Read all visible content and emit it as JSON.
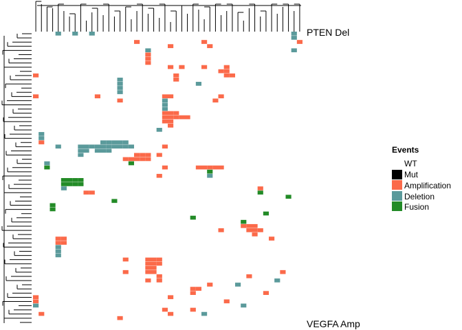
{
  "chart_data": {
    "type": "heatmap",
    "title": "",
    "xlabel": "",
    "ylabel": "",
    "legend_title": "Events",
    "legend_position": "right",
    "categories": [
      "WT",
      "Mut",
      "Amplification",
      "Deletion",
      "Fusion"
    ],
    "colors": {
      "WT": "#ffffff",
      "Mut": "#000000",
      "Amplification": "#fb6a4a",
      "Deletion": "#5b9a9b",
      "Fusion": "#238b27"
    },
    "n_columns": 48,
    "row_labels_visible": {
      "first": "PTEN Del",
      "last": "VEGFA Amp"
    },
    "cells": [
      {
        "row": 0,
        "col": 4,
        "event": "Deletion"
      },
      {
        "row": 0,
        "col": 7,
        "event": "Deletion"
      },
      {
        "row": 0,
        "col": 10,
        "event": "Deletion"
      },
      {
        "row": 0,
        "col": 46,
        "event": "Deletion"
      },
      {
        "row": 1,
        "col": 46,
        "event": "Deletion"
      },
      {
        "row": 2,
        "col": 18,
        "event": "Amplification"
      },
      {
        "row": 2,
        "col": 30,
        "event": "Amplification"
      },
      {
        "row": 2,
        "col": 47,
        "event": "Amplification"
      },
      {
        "row": 3,
        "col": 24,
        "event": "Amplification"
      },
      {
        "row": 3,
        "col": 31,
        "event": "Amplification"
      },
      {
        "row": 4,
        "col": 20,
        "event": "Deletion"
      },
      {
        "row": 4,
        "col": 46,
        "event": "Deletion"
      },
      {
        "row": 5,
        "col": 20,
        "event": "Amplification"
      },
      {
        "row": 6,
        "col": 20,
        "event": "Amplification"
      },
      {
        "row": 7,
        "col": 20,
        "event": "Amplification"
      },
      {
        "row": 8,
        "col": 24,
        "event": "Amplification"
      },
      {
        "row": 8,
        "col": 26,
        "event": "Amplification"
      },
      {
        "row": 8,
        "col": 30,
        "event": "Amplification"
      },
      {
        "row": 8,
        "col": 34,
        "event": "Amplification"
      },
      {
        "row": 9,
        "col": 33,
        "event": "Amplification"
      },
      {
        "row": 9,
        "col": 34,
        "event": "Amplification"
      },
      {
        "row": 10,
        "col": 0,
        "event": "Amplification"
      },
      {
        "row": 10,
        "col": 25,
        "event": "Amplification"
      },
      {
        "row": 10,
        "col": 34,
        "event": "Amplification"
      },
      {
        "row": 10,
        "col": 35,
        "event": "Amplification"
      },
      {
        "row": 11,
        "col": 15,
        "event": "Deletion"
      },
      {
        "row": 11,
        "col": 25,
        "event": "Amplification"
      },
      {
        "row": 12,
        "col": 15,
        "event": "Deletion"
      },
      {
        "row": 12,
        "col": 29,
        "event": "Deletion"
      },
      {
        "row": 13,
        "col": 15,
        "event": "Deletion"
      },
      {
        "row": 14,
        "col": 15,
        "event": "Deletion"
      },
      {
        "row": 15,
        "col": 0,
        "event": "Amplification"
      },
      {
        "row": 15,
        "col": 11,
        "event": "Amplification"
      },
      {
        "row": 15,
        "col": 23,
        "event": "Amplification"
      },
      {
        "row": 15,
        "col": 24,
        "event": "Amplification"
      },
      {
        "row": 15,
        "col": 33,
        "event": "Amplification"
      },
      {
        "row": 16,
        "col": 15,
        "event": "Amplification"
      },
      {
        "row": 16,
        "col": 23,
        "event": "Deletion"
      },
      {
        "row": 16,
        "col": 32,
        "event": "Amplification"
      },
      {
        "row": 17,
        "col": 23,
        "event": "Deletion"
      },
      {
        "row": 18,
        "col": 23,
        "event": "Deletion"
      },
      {
        "row": 19,
        "col": 23,
        "event": "Amplification"
      },
      {
        "row": 19,
        "col": 24,
        "event": "Amplification"
      },
      {
        "row": 19,
        "col": 25,
        "event": "Amplification"
      },
      {
        "row": 20,
        "col": 23,
        "event": "Amplification"
      },
      {
        "row": 20,
        "col": 24,
        "event": "Amplification"
      },
      {
        "row": 20,
        "col": 25,
        "event": "Amplification"
      },
      {
        "row": 20,
        "col": 26,
        "event": "Amplification"
      },
      {
        "row": 20,
        "col": 27,
        "event": "Amplification"
      },
      {
        "row": 21,
        "col": 23,
        "event": "Amplification"
      },
      {
        "row": 21,
        "col": 24,
        "event": "Amplification"
      },
      {
        "row": 22,
        "col": 24,
        "event": "Amplification"
      },
      {
        "row": 23,
        "col": 22,
        "event": "Deletion"
      },
      {
        "row": 24,
        "col": 1,
        "event": "Deletion"
      },
      {
        "row": 25,
        "col": 1,
        "event": "Deletion"
      },
      {
        "row": 26,
        "col": 1,
        "event": "Amplification"
      },
      {
        "row": 26,
        "col": 12,
        "event": "Deletion"
      },
      {
        "row": 26,
        "col": 13,
        "event": "Deletion"
      },
      {
        "row": 26,
        "col": 14,
        "event": "Deletion"
      },
      {
        "row": 26,
        "col": 15,
        "event": "Deletion"
      },
      {
        "row": 26,
        "col": 16,
        "event": "Deletion"
      },
      {
        "row": 27,
        "col": 4,
        "event": "Deletion"
      },
      {
        "row": 27,
        "col": 8,
        "event": "Deletion"
      },
      {
        "row": 27,
        "col": 9,
        "event": "Deletion"
      },
      {
        "row": 27,
        "col": 10,
        "event": "Deletion"
      },
      {
        "row": 27,
        "col": 11,
        "event": "Deletion"
      },
      {
        "row": 27,
        "col": 12,
        "event": "Deletion"
      },
      {
        "row": 27,
        "col": 13,
        "event": "Deletion"
      },
      {
        "row": 27,
        "col": 14,
        "event": "Deletion"
      },
      {
        "row": 27,
        "col": 15,
        "event": "Deletion"
      },
      {
        "row": 27,
        "col": 16,
        "event": "Deletion"
      },
      {
        "row": 27,
        "col": 17,
        "event": "Deletion"
      },
      {
        "row": 27,
        "col": 23,
        "event": "Amplification"
      },
      {
        "row": 28,
        "col": 8,
        "event": "Deletion"
      },
      {
        "row": 28,
        "col": 9,
        "event": "Deletion"
      },
      {
        "row": 28,
        "col": 11,
        "event": "Deletion"
      },
      {
        "row": 28,
        "col": 12,
        "event": "Deletion"
      },
      {
        "row": 28,
        "col": 13,
        "event": "Deletion"
      },
      {
        "row": 29,
        "col": 8,
        "event": "Deletion"
      },
      {
        "row": 29,
        "col": 18,
        "event": "Amplification"
      },
      {
        "row": 29,
        "col": 19,
        "event": "Amplification"
      },
      {
        "row": 29,
        "col": 20,
        "event": "Amplification"
      },
      {
        "row": 29,
        "col": 22,
        "event": "Amplification"
      },
      {
        "row": 30,
        "col": 16,
        "event": "Amplification"
      },
      {
        "row": 30,
        "col": 17,
        "event": "Amplification"
      },
      {
        "row": 30,
        "col": 18,
        "event": "Amplification"
      },
      {
        "row": 30,
        "col": 19,
        "event": "Amplification"
      },
      {
        "row": 30,
        "col": 20,
        "event": "Amplification"
      },
      {
        "row": 31,
        "col": 2,
        "event": "Deletion"
      },
      {
        "row": 31,
        "col": 17,
        "event": "Fusion"
      },
      {
        "row": 32,
        "col": 2,
        "event": "Fusion"
      },
      {
        "row": 32,
        "col": 23,
        "event": "Amplification"
      },
      {
        "row": 32,
        "col": 29,
        "event": "Amplification"
      },
      {
        "row": 32,
        "col": 30,
        "event": "Amplification"
      },
      {
        "row": 32,
        "col": 31,
        "event": "Amplification"
      },
      {
        "row": 32,
        "col": 32,
        "event": "Amplification"
      },
      {
        "row": 32,
        "col": 33,
        "event": "Amplification"
      },
      {
        "row": 33,
        "col": 31,
        "event": "Fusion"
      },
      {
        "row": 34,
        "col": 22,
        "event": "Amplification"
      },
      {
        "row": 34,
        "col": 31,
        "event": "Deletion"
      },
      {
        "row": 35,
        "col": 5,
        "event": "Fusion"
      },
      {
        "row": 35,
        "col": 6,
        "event": "Fusion"
      },
      {
        "row": 35,
        "col": 7,
        "event": "Fusion"
      },
      {
        "row": 35,
        "col": 8,
        "event": "Fusion"
      },
      {
        "row": 36,
        "col": 5,
        "event": "Fusion"
      },
      {
        "row": 36,
        "col": 6,
        "event": "Fusion"
      },
      {
        "row": 36,
        "col": 7,
        "event": "Fusion"
      },
      {
        "row": 36,
        "col": 8,
        "event": "Fusion"
      },
      {
        "row": 37,
        "col": 5,
        "event": "Deletion"
      },
      {
        "row": 37,
        "col": 40,
        "event": "Amplification"
      },
      {
        "row": 38,
        "col": 9,
        "event": "Amplification"
      },
      {
        "row": 38,
        "col": 10,
        "event": "Amplification"
      },
      {
        "row": 38,
        "col": 40,
        "event": "Fusion"
      },
      {
        "row": 39,
        "col": 45,
        "event": "Fusion"
      },
      {
        "row": 40,
        "col": 14,
        "event": "Fusion"
      },
      {
        "row": 41,
        "col": 3,
        "event": "Fusion"
      },
      {
        "row": 42,
        "col": 3,
        "event": "Fusion"
      },
      {
        "row": 43,
        "col": 41,
        "event": "Fusion"
      },
      {
        "row": 44,
        "col": 28,
        "event": "Fusion"
      },
      {
        "row": 45,
        "col": 37,
        "event": "Fusion"
      },
      {
        "row": 46,
        "col": 37,
        "event": "Amplification"
      },
      {
        "row": 46,
        "col": 38,
        "event": "Amplification"
      },
      {
        "row": 46,
        "col": 39,
        "event": "Amplification"
      },
      {
        "row": 47,
        "col": 33,
        "event": "Amplification"
      },
      {
        "row": 47,
        "col": 38,
        "event": "Amplification"
      },
      {
        "row": 47,
        "col": 39,
        "event": "Amplification"
      },
      {
        "row": 47,
        "col": 40,
        "event": "Amplification"
      },
      {
        "row": 48,
        "col": 39,
        "event": "Amplification"
      },
      {
        "row": 49,
        "col": 4,
        "event": "Amplification"
      },
      {
        "row": 49,
        "col": 5,
        "event": "Amplification"
      },
      {
        "row": 49,
        "col": 42,
        "event": "Amplification"
      },
      {
        "row": 50,
        "col": 4,
        "event": "Amplification"
      },
      {
        "row": 50,
        "col": 5,
        "event": "Amplification"
      },
      {
        "row": 51,
        "col": 4,
        "event": "Deletion"
      },
      {
        "row": 52,
        "col": 4,
        "event": "Deletion"
      },
      {
        "row": 53,
        "col": 4,
        "event": "Deletion"
      },
      {
        "row": 54,
        "col": 20,
        "event": "Amplification"
      },
      {
        "row": 54,
        "col": 21,
        "event": "Amplification"
      },
      {
        "row": 54,
        "col": 22,
        "event": "Amplification"
      },
      {
        "row": 54,
        "col": 16,
        "event": "Amplification"
      },
      {
        "row": 55,
        "col": 20,
        "event": "Amplification"
      },
      {
        "row": 55,
        "col": 21,
        "event": "Amplification"
      },
      {
        "row": 55,
        "col": 22,
        "event": "Amplification"
      },
      {
        "row": 56,
        "col": 20,
        "event": "Amplification"
      },
      {
        "row": 56,
        "col": 21,
        "event": "Amplification"
      },
      {
        "row": 57,
        "col": 20,
        "event": "Amplification"
      },
      {
        "row": 57,
        "col": 21,
        "event": "Amplification"
      },
      {
        "row": 57,
        "col": 16,
        "event": "Amplification"
      },
      {
        "row": 57,
        "col": 44,
        "event": "Amplification"
      },
      {
        "row": 58,
        "col": 22,
        "event": "Amplification"
      },
      {
        "row": 58,
        "col": 38,
        "event": "Amplification"
      },
      {
        "row": 59,
        "col": 22,
        "event": "Amplification"
      },
      {
        "row": 59,
        "col": 20,
        "event": "Amplification"
      },
      {
        "row": 59,
        "col": 43,
        "event": "Deletion"
      },
      {
        "row": 60,
        "col": 36,
        "event": "Deletion"
      },
      {
        "row": 60,
        "col": 31,
        "event": "Amplification"
      },
      {
        "row": 61,
        "col": 28,
        "event": "Amplification"
      },
      {
        "row": 61,
        "col": 29,
        "event": "Amplification"
      },
      {
        "row": 62,
        "col": 28,
        "event": "Amplification"
      },
      {
        "row": 62,
        "col": 41,
        "event": "Amplification"
      },
      {
        "row": 63,
        "col": 0,
        "event": "Amplification"
      },
      {
        "row": 63,
        "col": 24,
        "event": "Amplification"
      },
      {
        "row": 64,
        "col": 0,
        "event": "Amplification"
      },
      {
        "row": 64,
        "col": 34,
        "event": "Amplification"
      },
      {
        "row": 65,
        "col": 0,
        "event": "Deletion"
      },
      {
        "row": 65,
        "col": 37,
        "event": "Deletion"
      },
      {
        "row": 66,
        "col": 23,
        "event": "Amplification"
      },
      {
        "row": 66,
        "col": 28,
        "event": "Amplification"
      },
      {
        "row": 67,
        "col": 1,
        "event": "Amplification"
      },
      {
        "row": 67,
        "col": 24,
        "event": "Amplification"
      },
      {
        "row": 67,
        "col": 30,
        "event": "Deletion"
      },
      {
        "row": 68,
        "col": 15,
        "event": "Amplification"
      }
    ]
  }
}
